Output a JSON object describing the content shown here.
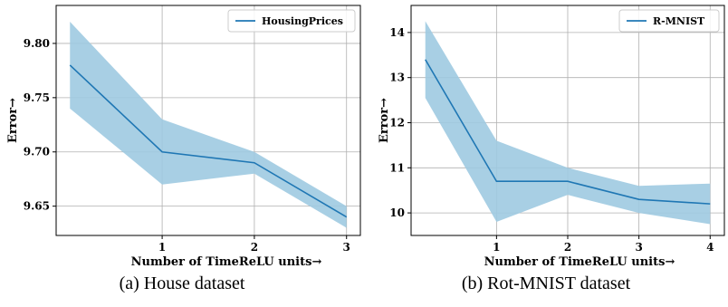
{
  "chart_data": [
    {
      "type": "line",
      "xlabel": "Number of TimeReLU units→",
      "ylabel": "Error→",
      "caption": "(a) House dataset",
      "xticks": [
        1,
        2,
        3
      ],
      "yticks": [
        9.65,
        9.7,
        9.75,
        9.8
      ],
      "ytick_labels": [
        "9.65",
        "9.70",
        "9.75",
        "9.80"
      ],
      "xlim": [
        -0.15,
        3.15
      ],
      "ylim": [
        9.623,
        9.835
      ],
      "grid": true,
      "legend_position": "top-right",
      "series": [
        {
          "name": "HousingPrices",
          "color": "#1f77b4",
          "band_color": "#9ecae1",
          "x": [
            0,
            1,
            2,
            3
          ],
          "values": [
            9.78,
            9.7,
            9.69,
            9.64
          ],
          "lower": [
            9.74,
            9.67,
            9.68,
            9.63
          ],
          "upper": [
            9.82,
            9.73,
            9.7,
            9.65
          ]
        }
      ]
    },
    {
      "type": "line",
      "xlabel": "Number of TimeReLU units→",
      "ylabel": "Error→",
      "caption": "(b) Rot-MNIST dataset",
      "xticks": [
        1,
        2,
        3,
        4
      ],
      "yticks": [
        10,
        11,
        12,
        13,
        14
      ],
      "ytick_labels": [
        "10",
        "11",
        "12",
        "13",
        "14"
      ],
      "xlim": [
        -0.2,
        4.2
      ],
      "ylim": [
        9.5,
        14.6
      ],
      "grid": true,
      "legend_position": "top-right",
      "series": [
        {
          "name": "R-MNIST",
          "color": "#1f77b4",
          "band_color": "#9ecae1",
          "x": [
            0,
            1,
            2,
            3,
            4
          ],
          "values": [
            13.4,
            10.7,
            10.7,
            10.3,
            10.2
          ],
          "lower": [
            12.55,
            9.8,
            10.4,
            10.0,
            9.75
          ],
          "upper": [
            14.25,
            11.6,
            11.0,
            10.6,
            10.65
          ]
        }
      ]
    }
  ]
}
